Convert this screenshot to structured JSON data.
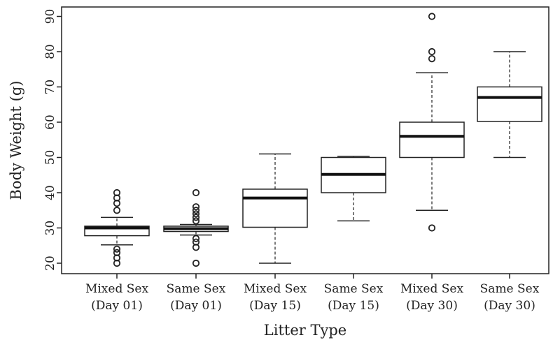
{
  "chart_data": {
    "type": "box",
    "xlabel": "Litter Type",
    "ylabel": "Body Weight (g)",
    "ylim": [
      18,
      92
    ],
    "yticks": [
      20,
      30,
      40,
      50,
      60,
      70,
      80,
      90
    ],
    "grid": false,
    "categories": [
      {
        "line1": "Mixed Sex",
        "line2": "(Day 01)"
      },
      {
        "line1": "Same Sex",
        "line2": "(Day 01)"
      },
      {
        "line1": "Mixed Sex",
        "line2": "(Day 15)"
      },
      {
        "line1": "Same Sex",
        "line2": "(Day 15)"
      },
      {
        "line1": "Mixed Sex",
        "line2": "(Day 30)"
      },
      {
        "line1": "Same Sex",
        "line2": "(Day 30)"
      }
    ],
    "boxes": [
      {
        "whisker_low": 25.2,
        "q1": 27.8,
        "median": 30,
        "q3": 30.5,
        "whisker_high": 33,
        "outliers": [
          20,
          21.5,
          23,
          24,
          35,
          37,
          38.5,
          40
        ]
      },
      {
        "whisker_low": 28,
        "q1": 29,
        "median": 29.8,
        "q3": 30.5,
        "whisker_high": 31,
        "outliers": [
          20,
          24.5,
          26,
          27,
          32,
          33,
          34,
          35,
          36,
          40
        ]
      },
      {
        "whisker_low": 20,
        "q1": 30.2,
        "median": 38.5,
        "q3": 41,
        "whisker_high": 51,
        "outliers": []
      },
      {
        "whisker_low": 32,
        "q1": 40,
        "median": 45.2,
        "q3": 50,
        "whisker_high": 50.3,
        "outliers": []
      },
      {
        "whisker_low": 35,
        "q1": 50,
        "median": 56,
        "q3": 60,
        "whisker_high": 74,
        "outliers": [
          30,
          78,
          80,
          90
        ]
      },
      {
        "whisker_low": 50,
        "q1": 60.2,
        "median": 67,
        "q3": 70,
        "whisker_high": 80,
        "outliers": []
      }
    ]
  }
}
